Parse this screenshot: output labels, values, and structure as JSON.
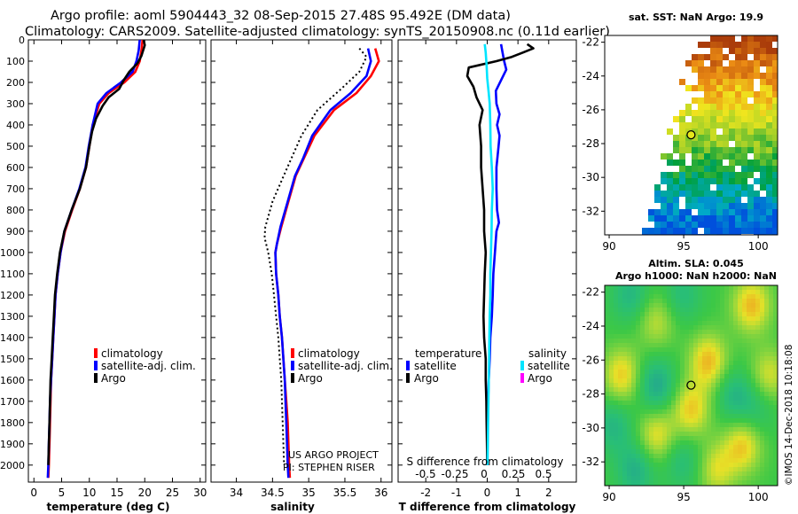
{
  "header": {
    "line1": "Argo profile: aoml 5904443_32 08-Sep-2015 27.48S 95.492E (DM data)",
    "line2": "Climatology: CARS2009. Satellite-adjusted climatology: synTS_20150908.nc (0.11d earlier)"
  },
  "colors": {
    "climatology": "#ff0000",
    "satellite": "#0000ff",
    "argo": "#000000",
    "sat_salinity": "#00e5ff",
    "argo_salinity": "#ff00ff"
  },
  "chart_data": [
    {
      "type": "line",
      "name": "temperature",
      "xlabel": "temperature (deg C)",
      "xlim": [
        -1,
        31
      ],
      "xticks": [
        0,
        5,
        10,
        15,
        20,
        25,
        30
      ],
      "ylim": [
        0,
        2080
      ],
      "yticks": [
        0,
        100,
        200,
        300,
        400,
        500,
        600,
        700,
        800,
        900,
        1000,
        1100,
        1200,
        1300,
        1400,
        1500,
        1600,
        1700,
        1800,
        1900,
        2000
      ],
      "legend": [
        "climatology",
        "satellite-adj. clim.",
        "Argo"
      ],
      "series": [
        {
          "name": "climatology",
          "color": "#ff0000",
          "points": [
            [
              19.6,
              0
            ],
            [
              19.4,
              50
            ],
            [
              19.1,
              100
            ],
            [
              18.3,
              150
            ],
            [
              16.3,
              200
            ],
            [
              13.5,
              250
            ],
            [
              11.8,
              300
            ],
            [
              10.6,
              400
            ],
            [
              10,
              500
            ],
            [
              9.4,
              600
            ],
            [
              8.3,
              700
            ],
            [
              6.9,
              800
            ],
            [
              5.6,
              900
            ],
            [
              4.8,
              1000
            ],
            [
              4.3,
              1100
            ],
            [
              3.9,
              1200
            ],
            [
              3.7,
              1300
            ],
            [
              3.5,
              1400
            ],
            [
              3.3,
              1500
            ],
            [
              3.1,
              1600
            ],
            [
              3,
              1700
            ],
            [
              2.9,
              1800
            ],
            [
              2.8,
              1900
            ],
            [
              2.7,
              2000
            ],
            [
              2.6,
              2060
            ]
          ]
        },
        {
          "name": "satellite-adj. clim.",
          "color": "#0000ff",
          "points": [
            [
              19.1,
              0
            ],
            [
              18.9,
              50
            ],
            [
              18.5,
              100
            ],
            [
              17.8,
              150
            ],
            [
              15.7,
              200
            ],
            [
              13.1,
              250
            ],
            [
              11.5,
              300
            ],
            [
              10.6,
              400
            ],
            [
              9.9,
              500
            ],
            [
              9.3,
              600
            ],
            [
              8.2,
              700
            ],
            [
              6.8,
              800
            ],
            [
              5.5,
              900
            ],
            [
              4.8,
              1000
            ],
            [
              4.3,
              1100
            ],
            [
              3.9,
              1200
            ],
            [
              3.7,
              1300
            ],
            [
              3.5,
              1400
            ],
            [
              3.3,
              1500
            ],
            [
              3.1,
              1600
            ],
            [
              2.9,
              1700
            ],
            [
              2.8,
              1800
            ],
            [
              2.7,
              1900
            ],
            [
              2.6,
              2000
            ],
            [
              2.5,
              2060
            ]
          ]
        },
        {
          "name": "Argo",
          "color": "#000000",
          "points": [
            [
              19.8,
              0
            ],
            [
              20,
              25
            ],
            [
              19.7,
              50
            ],
            [
              19.4,
              75
            ],
            [
              18.7,
              110
            ],
            [
              17.2,
              150
            ],
            [
              16.2,
              190
            ],
            [
              15.4,
              230
            ],
            [
              13.5,
              270
            ],
            [
              12.4,
              310
            ],
            [
              11.2,
              370
            ],
            [
              10.5,
              430
            ],
            [
              10,
              500
            ],
            [
              9.4,
              600
            ],
            [
              8.3,
              700
            ],
            [
              6.8,
              800
            ],
            [
              5.5,
              900
            ],
            [
              4.7,
              1000
            ],
            [
              4.2,
              1100
            ],
            [
              3.8,
              1200
            ],
            [
              3.6,
              1300
            ],
            [
              3.4,
              1400
            ],
            [
              3.2,
              1500
            ],
            [
              3,
              1600
            ],
            [
              2.9,
              1700
            ],
            [
              2.8,
              1800
            ],
            [
              2.7,
              1900
            ],
            [
              2.6,
              2000
            ]
          ]
        }
      ]
    },
    {
      "type": "line",
      "name": "salinity",
      "xlabel": "salinity",
      "xlim": [
        33.65,
        36.15
      ],
      "xticks": [
        34,
        34.5,
        35,
        35.5,
        36
      ],
      "ylim": [
        0,
        2080
      ],
      "legend": [
        "climatology",
        "satellite-adj. clim.",
        "Argo"
      ],
      "annotation": [
        "US ARGO PROJECT",
        "PI: STEPHEN RISER"
      ],
      "series": [
        {
          "name": "climatology",
          "color": "#ff0000",
          "points": [
            [
              35.92,
              40
            ],
            [
              35.97,
              100
            ],
            [
              35.86,
              170
            ],
            [
              35.66,
              250
            ],
            [
              35.35,
              330
            ],
            [
              35.08,
              450
            ],
            [
              34.93,
              560
            ],
            [
              34.82,
              640
            ],
            [
              34.72,
              760
            ],
            [
              34.62,
              880
            ],
            [
              34.56,
              960
            ],
            [
              34.54,
              1000
            ],
            [
              34.55,
              1100
            ],
            [
              34.58,
              1200
            ],
            [
              34.6,
              1300
            ],
            [
              34.63,
              1400
            ],
            [
              34.65,
              1500
            ],
            [
              34.67,
              1600
            ],
            [
              34.69,
              1700
            ],
            [
              34.71,
              1800
            ],
            [
              34.72,
              1900
            ],
            [
              34.73,
              2000
            ],
            [
              34.74,
              2060
            ]
          ]
        },
        {
          "name": "satellite-adj. clim.",
          "color": "#0000ff",
          "points": [
            [
              35.82,
              40
            ],
            [
              35.86,
              100
            ],
            [
              35.8,
              170
            ],
            [
              35.58,
              250
            ],
            [
              35.3,
              330
            ],
            [
              35.05,
              450
            ],
            [
              34.92,
              560
            ],
            [
              34.81,
              640
            ],
            [
              34.71,
              760
            ],
            [
              34.61,
              880
            ],
            [
              34.56,
              960
            ],
            [
              34.54,
              1000
            ],
            [
              34.55,
              1100
            ],
            [
              34.58,
              1200
            ],
            [
              34.6,
              1300
            ],
            [
              34.63,
              1400
            ],
            [
              34.65,
              1500
            ],
            [
              34.67,
              1600
            ],
            [
              34.68,
              1700
            ],
            [
              34.69,
              1800
            ],
            [
              34.7,
              1900
            ],
            [
              34.71,
              2000
            ],
            [
              34.72,
              2060
            ]
          ]
        },
        {
          "name": "Argo",
          "color": "#000000",
          "dashed": true,
          "points": [
            [
              35.7,
              40
            ],
            [
              35.8,
              80
            ],
            [
              35.7,
              150
            ],
            [
              35.45,
              230
            ],
            [
              35.12,
              330
            ],
            [
              34.9,
              450
            ],
            [
              34.68,
              620
            ],
            [
              34.5,
              760
            ],
            [
              34.4,
              880
            ],
            [
              34.39,
              930
            ],
            [
              34.44,
              1000
            ],
            [
              34.49,
              1100
            ],
            [
              34.52,
              1200
            ],
            [
              34.55,
              1300
            ],
            [
              34.58,
              1400
            ],
            [
              34.6,
              1500
            ],
            [
              34.62,
              1600
            ],
            [
              34.63,
              1700
            ],
            [
              34.64,
              1800
            ],
            [
              34.65,
              1900
            ],
            [
              34.66,
              2000
            ]
          ]
        }
      ]
    },
    {
      "type": "line",
      "name": "difference",
      "xlabel": "T difference from climatology",
      "xlabel_top": "S difference from climatology",
      "xlim": [
        -2.9,
        2.9
      ],
      "xticks": [
        -2,
        -1,
        0,
        1,
        2
      ],
      "xticks_s": [
        "-0.5",
        "-0.25",
        "0",
        "0.25",
        "0.5"
      ],
      "ylim": [
        0,
        2080
      ],
      "legend_temperature": {
        "title": "temperature",
        "items": [
          "satellite",
          "Argo"
        ]
      },
      "legend_salinity": {
        "title": "salinity",
        "items": [
          "satellite",
          "Argo"
        ]
      },
      "series": [
        {
          "name": "temperature satellite",
          "color": "#0000ff",
          "points": [
            [
              0.45,
              20
            ],
            [
              0.5,
              60
            ],
            [
              0.55,
              100
            ],
            [
              0.62,
              140
            ],
            [
              0.45,
              190
            ],
            [
              0.28,
              240
            ],
            [
              0.3,
              300
            ],
            [
              0.4,
              350
            ],
            [
              0.32,
              400
            ],
            [
              0.4,
              450
            ],
            [
              0.37,
              500
            ],
            [
              0.3,
              600
            ],
            [
              0.3,
              700
            ],
            [
              0.32,
              800
            ],
            [
              0.38,
              860
            ],
            [
              0.3,
              900
            ],
            [
              0.25,
              1000
            ],
            [
              0.2,
              1100
            ],
            [
              0.18,
              1200
            ],
            [
              0.15,
              1300
            ],
            [
              0.1,
              1400
            ],
            [
              0.08,
              1500
            ],
            [
              0.05,
              1600
            ],
            [
              0.03,
              1700
            ],
            [
              0.02,
              1800
            ],
            [
              0.01,
              1900
            ],
            [
              0,
              2000
            ]
          ]
        },
        {
          "name": "temperature Argo",
          "color": "#000000",
          "points": [
            [
              1.3,
              20
            ],
            [
              1.5,
              40
            ],
            [
              1.15,
              60
            ],
            [
              0.8,
              80
            ],
            [
              0.3,
              100
            ],
            [
              -0.6,
              130
            ],
            [
              -0.65,
              170
            ],
            [
              -0.45,
              220
            ],
            [
              -0.35,
              270
            ],
            [
              -0.15,
              330
            ],
            [
              -0.25,
              400
            ],
            [
              -0.2,
              500
            ],
            [
              -0.2,
              600
            ],
            [
              -0.15,
              700
            ],
            [
              -0.1,
              800
            ],
            [
              -0.1,
              900
            ],
            [
              -0.05,
              1000
            ],
            [
              -0.08,
              1100
            ],
            [
              -0.1,
              1200
            ],
            [
              -0.12,
              1300
            ],
            [
              -0.1,
              1400
            ],
            [
              -0.05,
              1500
            ],
            [
              -0.05,
              1600
            ],
            [
              -0.03,
              1700
            ],
            [
              -0.02,
              1800
            ],
            [
              -0.01,
              1900
            ],
            [
              0,
              2000
            ]
          ]
        },
        {
          "name": "salinity satellite",
          "color": "#00e5ff",
          "points": [
            [
              -0.08,
              20
            ],
            [
              -0.05,
              60
            ],
            [
              -0.02,
              120
            ],
            [
              0,
              180
            ],
            [
              0.05,
              250
            ],
            [
              0.08,
              300
            ],
            [
              0.1,
              400
            ],
            [
              0.11,
              500
            ],
            [
              0.15,
              600
            ],
            [
              0.18,
              700
            ],
            [
              0.15,
              800
            ],
            [
              0.14,
              900
            ],
            [
              0.12,
              1000
            ],
            [
              0.1,
              1100
            ],
            [
              0.1,
              1200
            ],
            [
              0.08,
              1300
            ],
            [
              0.07,
              1400
            ],
            [
              0.06,
              1500
            ],
            [
              0.05,
              1600
            ],
            [
              0.04,
              1700
            ],
            [
              0.03,
              1800
            ],
            [
              0.02,
              1900
            ],
            [
              0.01,
              2000
            ]
          ]
        },
        {
          "name": "salinity Argo",
          "color": "#ff00ff",
          "points": []
        }
      ]
    },
    {
      "type": "heatmap",
      "name": "sst_map",
      "title": "sat. SST: NaN Argo: 19.9",
      "xticks": [
        90,
        95,
        100
      ],
      "yticks": [
        -22,
        -24,
        -26,
        -28,
        -30,
        -32
      ],
      "xlim": [
        89.7,
        101.3
      ],
      "ylim": [
        -33.4,
        -21.6
      ],
      "argo_position": [
        95.492,
        -27.48
      ]
    },
    {
      "type": "heatmap",
      "name": "sla_map",
      "title_line1": "Altim. SLA: 0.045",
      "title_line2": "Argo h1000: NaN h2000: NaN",
      "xticks": [
        90,
        95,
        100
      ],
      "yticks": [
        -22,
        -24,
        -26,
        -28,
        -30,
        -32
      ],
      "xlim": [
        89.7,
        101.3
      ],
      "ylim": [
        -33.4,
        -21.6
      ],
      "argo_position": [
        95.492,
        -27.48
      ]
    }
  ],
  "watermark": "©IMOS 14-Dec-2018 10:18:08"
}
